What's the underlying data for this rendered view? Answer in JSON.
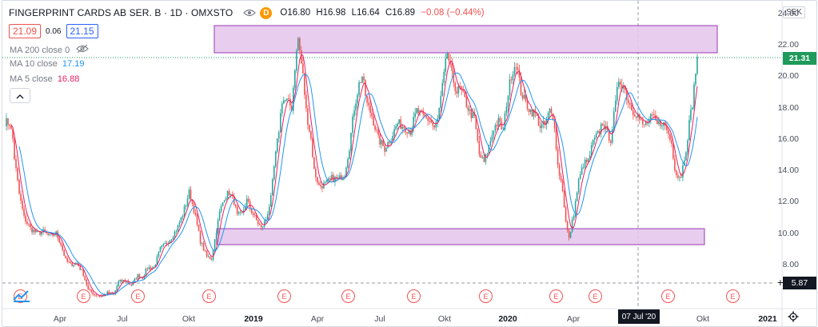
{
  "header": {
    "title": "FINGERPRINT CARDS AB SER. B · 1D · OMXSTO",
    "interval_badge": "D",
    "ohlc": {
      "open": "O16.80",
      "high": "H16.98",
      "low": "L16.64",
      "close": "C16.89",
      "change": "−0.08 (−0.44%)"
    }
  },
  "trade": {
    "sell": "21.09",
    "spread": "0.06",
    "buy": "21.15"
  },
  "indicators": [
    {
      "label": "MA 200 close 0",
      "value": "",
      "color": "#787b86"
    },
    {
      "label": "MA 10 close",
      "value": "17.19",
      "color": "#2196f3"
    },
    {
      "label": "MA 5 close",
      "value": "16.88",
      "color": "#e91e63"
    }
  ],
  "price_axis": {
    "currency": "SEK",
    "ticks": [
      "24.00",
      "22.00",
      "20.00",
      "18.00",
      "16.00",
      "14.00",
      "12.00",
      "10.00",
      "8.00"
    ],
    "last_price": "21.31",
    "crosshair_price": "5.87"
  },
  "time_axis": {
    "labels": [
      {
        "text": "Apr",
        "year": false
      },
      {
        "text": "Jul",
        "year": false
      },
      {
        "text": "Okt",
        "year": false
      },
      {
        "text": "2019",
        "year": true
      },
      {
        "text": "Apr",
        "year": false
      },
      {
        "text": "Jul",
        "year": false
      },
      {
        "text": "Okt",
        "year": false
      },
      {
        "text": "2020",
        "year": true
      },
      {
        "text": "Apr",
        "year": false
      },
      {
        "text": "Okt",
        "year": false
      },
      {
        "text": "2021",
        "year": true
      }
    ],
    "crosshair_date": "07 Jul '20"
  },
  "earnings_marker": "E",
  "colors": {
    "up": "#26a69a",
    "down": "#ef5350",
    "ma10": "#2196f3",
    "ma5": "#e91e63",
    "zone_fill": "#e6c8ee",
    "zone_border": "#8e24aa",
    "last_line": "#1e9a5b"
  },
  "chart_data": {
    "type": "line",
    "ylim": [
      5.2,
      24.8
    ],
    "price_points": [
      [
        0,
        17.1
      ],
      [
        3,
        17.0
      ],
      [
        5,
        16.0
      ],
      [
        6,
        14.8
      ],
      [
        9,
        12.5
      ],
      [
        12,
        11.0
      ],
      [
        16,
        10.3
      ],
      [
        20,
        10.0
      ],
      [
        24,
        10.1
      ],
      [
        28,
        9.8
      ],
      [
        32,
        10.0
      ],
      [
        35,
        9.3
      ],
      [
        38,
        8.3
      ],
      [
        41,
        8.0
      ],
      [
        45,
        8.1
      ],
      [
        49,
        7.4
      ],
      [
        52,
        6.4
      ],
      [
        56,
        6.1
      ],
      [
        60,
        6.0
      ],
      [
        64,
        6.2
      ],
      [
        68,
        6.1
      ],
      [
        71,
        6.9
      ],
      [
        75,
        7.0
      ],
      [
        79,
        6.7
      ],
      [
        83,
        7.3
      ],
      [
        86,
        7.2
      ],
      [
        89,
        7.8
      ],
      [
        93,
        7.8
      ],
      [
        97,
        9.0
      ],
      [
        102,
        9.5
      ],
      [
        107,
        10.2
      ],
      [
        111,
        11.2
      ],
      [
        115,
        12.6
      ],
      [
        118,
        11.5
      ],
      [
        122,
        9.5
      ],
      [
        126,
        8.5
      ],
      [
        129,
        8.4
      ],
      [
        131,
        9.6
      ],
      [
        134,
        11.3
      ],
      [
        137,
        12.3
      ],
      [
        140,
        12.6
      ],
      [
        143,
        12.0
      ],
      [
        145,
        11.1
      ],
      [
        148,
        11.2
      ],
      [
        151,
        12.1
      ],
      [
        154,
        11.4
      ],
      [
        157,
        10.8
      ],
      [
        160,
        10.3
      ],
      [
        163,
        10.9
      ],
      [
        166,
        12.2
      ],
      [
        168,
        14.2
      ],
      [
        171,
        16.6
      ],
      [
        173,
        18.5
      ],
      [
        176,
        18.4
      ],
      [
        179,
        18.0
      ],
      [
        181,
        20.6
      ],
      [
        183,
        22.4
      ],
      [
        186,
        20.0
      ],
      [
        188,
        17.8
      ],
      [
        191,
        16.0
      ],
      [
        193,
        14.0
      ],
      [
        196,
        13.0
      ],
      [
        200,
        13.1
      ],
      [
        204,
        13.5
      ],
      [
        208,
        13.4
      ],
      [
        212,
        13.8
      ],
      [
        215,
        15.5
      ],
      [
        218,
        18.0
      ],
      [
        221,
        19.5
      ],
      [
        223,
        20.0
      ],
      [
        226,
        18.2
      ],
      [
        229,
        17.5
      ],
      [
        233,
        16.0
      ],
      [
        237,
        15.4
      ],
      [
        241,
        16.1
      ],
      [
        245,
        17.0
      ],
      [
        249,
        16.8
      ],
      [
        253,
        16.5
      ],
      [
        257,
        17.8
      ],
      [
        261,
        17.4
      ],
      [
        265,
        17.2
      ],
      [
        268,
        16.7
      ],
      [
        270,
        17.2
      ],
      [
        273,
        19.3
      ],
      [
        276,
        21.5
      ],
      [
        279,
        20.0
      ],
      [
        282,
        19.0
      ],
      [
        284,
        19.2
      ],
      [
        287,
        18.5
      ],
      [
        290,
        17.7
      ],
      [
        293,
        17.3
      ],
      [
        296,
        15.0
      ],
      [
        299,
        14.5
      ],
      [
        302,
        15.5
      ],
      [
        305,
        16.7
      ],
      [
        308,
        17.1
      ],
      [
        311,
        16.5
      ],
      [
        313,
        18.3
      ],
      [
        316,
        20.1
      ],
      [
        319,
        20.9
      ],
      [
        322,
        19.0
      ],
      [
        325,
        18.3
      ],
      [
        328,
        17.8
      ],
      [
        331,
        17.6
      ],
      [
        334,
        16.8
      ],
      [
        337,
        16.9
      ],
      [
        340,
        17.8
      ],
      [
        343,
        16.9
      ],
      [
        345,
        14.3
      ],
      [
        348,
        12.8
      ],
      [
        350,
        10.7
      ],
      [
        352,
        9.6
      ],
      [
        355,
        11.3
      ],
      [
        358,
        13.3
      ],
      [
        361,
        14.4
      ],
      [
        364,
        14.6
      ],
      [
        367,
        15.8
      ],
      [
        370,
        16.3
      ],
      [
        373,
        17.1
      ],
      [
        376,
        16.3
      ],
      [
        378,
        16.0
      ],
      [
        381,
        18.2
      ],
      [
        383,
        19.8
      ],
      [
        386,
        19.4
      ],
      [
        389,
        18.4
      ],
      [
        392,
        17.8
      ],
      [
        395,
        17.5
      ],
      [
        398,
        16.8
      ],
      [
        401,
        17.1
      ],
      [
        404,
        17.4
      ],
      [
        407,
        16.9
      ],
      [
        410,
        17.1
      ],
      [
        413,
        16.6
      ],
      [
        416,
        15.7
      ],
      [
        418,
        14.2
      ],
      [
        420,
        13.6
      ],
      [
        422,
        13.7
      ],
      [
        425,
        15.4
      ],
      [
        427,
        17.0
      ],
      [
        429,
        18.3
      ],
      [
        432,
        21.3
      ]
    ]
  }
}
